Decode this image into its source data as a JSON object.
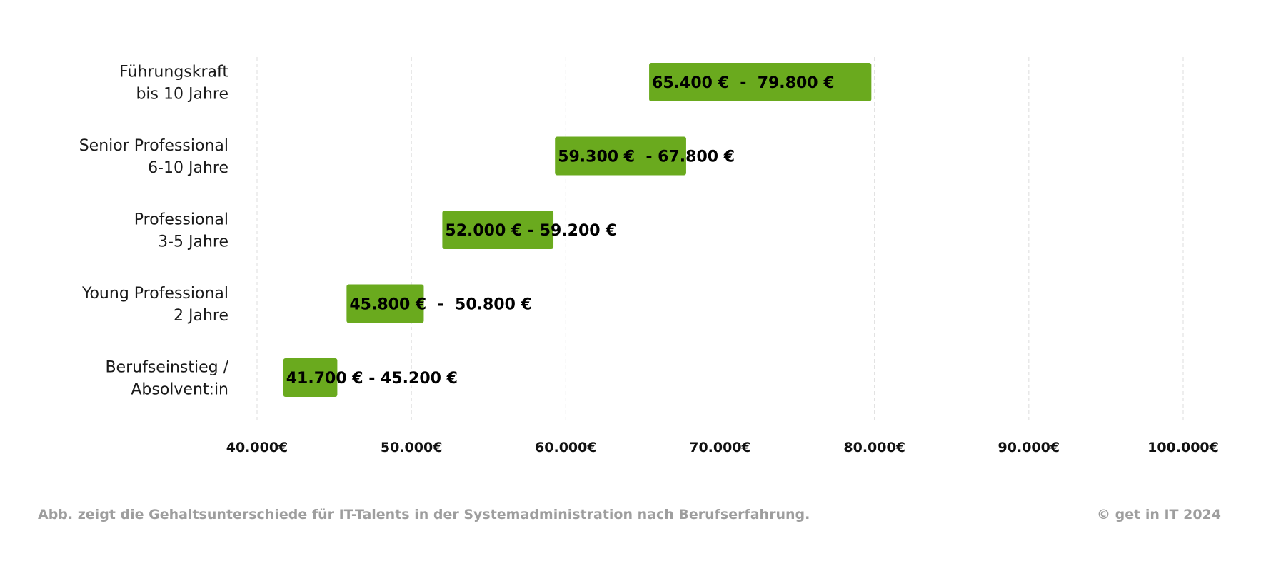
{
  "chart_data": {
    "type": "bar",
    "orientation": "horizontal",
    "subtype": "range",
    "xlim": [
      40000,
      100000
    ],
    "ticks": [
      {
        "value": 40000,
        "label": "40.000€"
      },
      {
        "value": 50000,
        "label": "50.000€"
      },
      {
        "value": 60000,
        "label": "60.000€"
      },
      {
        "value": 70000,
        "label": "70.000€"
      },
      {
        "value": 80000,
        "label": "80.000€"
      },
      {
        "value": 90000,
        "label": "90.000€"
      },
      {
        "value": 100000,
        "label": "100.000€"
      }
    ],
    "grid": true,
    "bars": [
      {
        "category_lines": [
          "Führungskraft",
          "bis 10 Jahre"
        ],
        "start": 65400,
        "end": 79800,
        "label": "65.400 €  -  79.800 €"
      },
      {
        "category_lines": [
          "Senior Professional",
          "6-10 Jahre"
        ],
        "start": 59300,
        "end": 67800,
        "label": "59.300 €  - 67.800 €"
      },
      {
        "category_lines": [
          "Professional",
          "3-5 Jahre"
        ],
        "start": 52000,
        "end": 59200,
        "label": "52.000 € - 59.200 €"
      },
      {
        "category_lines": [
          "Young Professional",
          "2 Jahre"
        ],
        "start": 45800,
        "end": 50800,
        "label": "45.800 €  -  50.800 €"
      },
      {
        "category_lines": [
          "Berufseinstieg /",
          "Absolvent:in"
        ],
        "start": 41700,
        "end": 45200,
        "label": "41.700 € - 45.200 €"
      }
    ],
    "bar_color": "#6aaa1e"
  },
  "footer": {
    "caption": "Abb. zeigt die Gehaltsunterschiede für IT-Talents in der Systemadministration nach Berufserfahrung.",
    "copyright": "© get in IT 2024"
  }
}
